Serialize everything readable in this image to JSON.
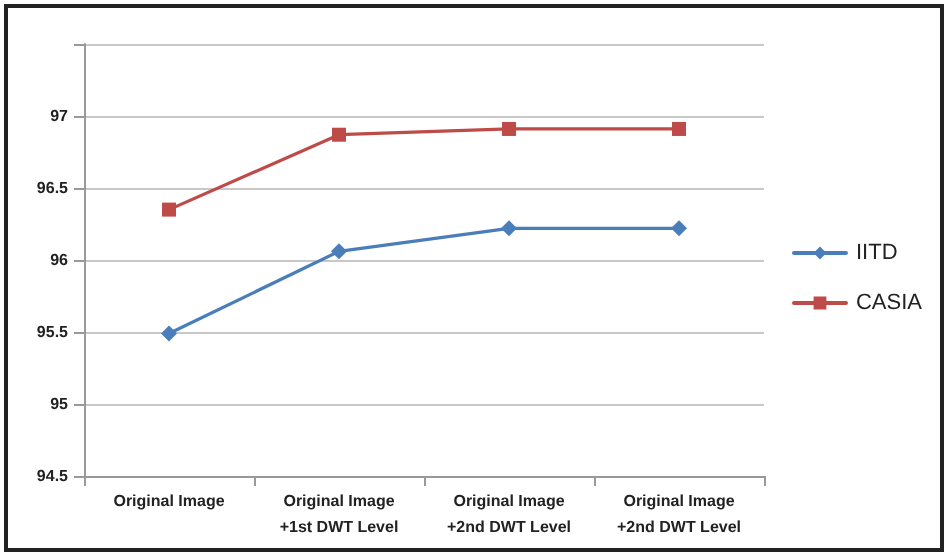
{
  "chart_data": {
    "type": "line",
    "categories": [
      "Original Image",
      "Original Image\n+1st DWT Level",
      "Original Image\n+2nd DWT Level",
      "Original Image\n+2nd DWT Level"
    ],
    "series": [
      {
        "name": "IITD",
        "color": "#4a7ebb",
        "marker": "diamond",
        "values": [
          95.49,
          96.06,
          96.22,
          96.22
        ]
      },
      {
        "name": "CASIA",
        "color": "#be4b48",
        "marker": "square",
        "values": [
          96.35,
          96.87,
          96.91,
          96.91
        ]
      }
    ],
    "ylim": [
      94.5,
      97.5
    ],
    "yticks": [
      94.5,
      95,
      95.5,
      96,
      96.5,
      97,
      {
        "value": 97.5,
        "label": null
      }
    ],
    "grid": "y",
    "legend": "right"
  }
}
